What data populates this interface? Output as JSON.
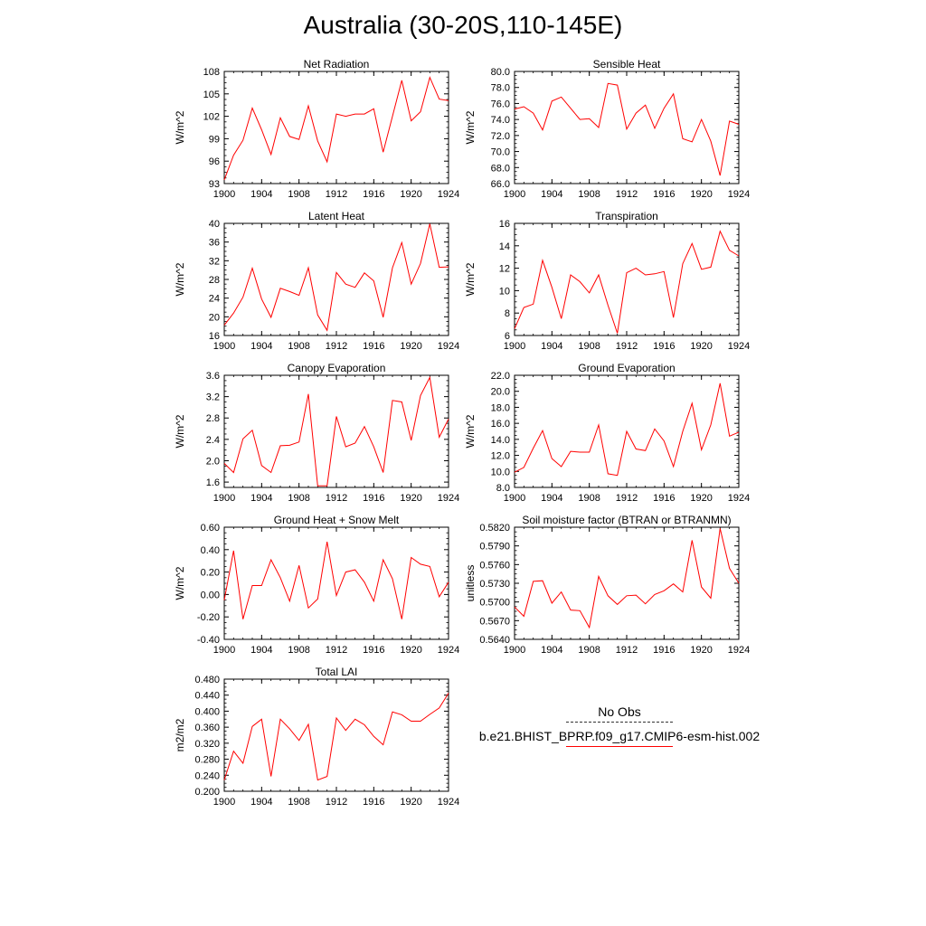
{
  "figure": {
    "title": "Australia (30-20S,110-145E)",
    "series_color": "#ff0000"
  },
  "legend": {
    "obs_label": "No Obs",
    "model_label": "b.e21.BHIST_BPRP.f09_g17.CMIP6-esm-hist.002"
  },
  "chart_data": [
    {
      "type": "line",
      "title": "Net Radiation",
      "ylabel": "W/m^2",
      "x": [
        1900,
        1901,
        1902,
        1903,
        1904,
        1905,
        1906,
        1907,
        1908,
        1909,
        1910,
        1911,
        1912,
        1913,
        1914,
        1915,
        1916,
        1917,
        1918,
        1919,
        1920,
        1921,
        1922,
        1923,
        1924
      ],
      "xlim": [
        1900,
        1924
      ],
      "xticks": [
        "1900",
        "1904",
        "1908",
        "1912",
        "1916",
        "1920",
        "1924"
      ],
      "ylim": [
        93,
        108
      ],
      "yticks": [
        "93",
        "96",
        "99",
        "102",
        "105",
        "108"
      ],
      "series": [
        {
          "values": [
            93.5,
            96.8,
            98.8,
            103.1,
            100.2,
            96.9,
            101.8,
            99.3,
            98.9,
            103.4,
            98.7,
            95.9,
            102.3,
            102.0,
            102.3,
            102.3,
            103.0,
            97.2,
            102.0,
            106.8,
            101.4,
            102.6,
            107.2,
            104.3,
            104.1
          ]
        }
      ]
    },
    {
      "type": "line",
      "title": "Sensible Heat",
      "ylabel": "W/m^2",
      "x": [
        1900,
        1901,
        1902,
        1903,
        1904,
        1905,
        1906,
        1907,
        1908,
        1909,
        1910,
        1911,
        1912,
        1913,
        1914,
        1915,
        1916,
        1917,
        1918,
        1919,
        1920,
        1921,
        1922,
        1923,
        1924
      ],
      "xlim": [
        1900,
        1924
      ],
      "xticks": [
        "1900",
        "1904",
        "1908",
        "1912",
        "1916",
        "1920",
        "1924"
      ],
      "ylim": [
        66.0,
        80.0
      ],
      "yticks": [
        "66.0",
        "68.0",
        "70.0",
        "72.0",
        "74.0",
        "76.0",
        "78.0",
        "80.0"
      ],
      "series": [
        {
          "values": [
            75.3,
            75.6,
            74.8,
            72.7,
            76.3,
            76.8,
            75.4,
            74.0,
            74.1,
            73.0,
            78.5,
            78.3,
            72.8,
            74.8,
            75.8,
            72.9,
            75.4,
            77.2,
            71.6,
            71.2,
            74.0,
            71.3,
            67.0,
            73.8,
            73.4
          ]
        }
      ]
    },
    {
      "type": "line",
      "title": "Latent Heat",
      "ylabel": "W/m^2",
      "x": [
        1900,
        1901,
        1902,
        1903,
        1904,
        1905,
        1906,
        1907,
        1908,
        1909,
        1910,
        1911,
        1912,
        1913,
        1914,
        1915,
        1916,
        1917,
        1918,
        1919,
        1920,
        1921,
        1922,
        1923,
        1924
      ],
      "xlim": [
        1900,
        1924
      ],
      "xticks": [
        "1900",
        "1904",
        "1908",
        "1912",
        "1916",
        "1920",
        "1924"
      ],
      "ylim": [
        16,
        40
      ],
      "yticks": [
        "16",
        "20",
        "24",
        "28",
        "32",
        "36",
        "40"
      ],
      "series": [
        {
          "values": [
            18.2,
            20.8,
            24.2,
            30.4,
            23.8,
            19.9,
            26.1,
            25.4,
            24.6,
            30.5,
            20.4,
            17.1,
            29.5,
            27.0,
            26.3,
            29.4,
            27.7,
            19.9,
            30.5,
            35.9,
            27.0,
            31.4,
            39.9,
            30.6,
            30.7
          ]
        }
      ]
    },
    {
      "type": "line",
      "title": "Transpiration",
      "ylabel": "W/m^2",
      "x": [
        1900,
        1901,
        1902,
        1903,
        1904,
        1905,
        1906,
        1907,
        1908,
        1909,
        1910,
        1911,
        1912,
        1913,
        1914,
        1915,
        1916,
        1917,
        1918,
        1919,
        1920,
        1921,
        1922,
        1923,
        1924
      ],
      "xlim": [
        1900,
        1924
      ],
      "xticks": [
        "1900",
        "1904",
        "1908",
        "1912",
        "1916",
        "1920",
        "1924"
      ],
      "ylim": [
        6,
        16
      ],
      "yticks": [
        "6",
        "8",
        "10",
        "12",
        "14",
        "16"
      ],
      "series": [
        {
          "values": [
            6.6,
            8.5,
            8.8,
            12.7,
            10.3,
            7.5,
            11.4,
            10.8,
            9.8,
            11.4,
            8.7,
            6.2,
            11.6,
            12.0,
            11.4,
            11.5,
            11.7,
            7.6,
            12.4,
            14.2,
            11.9,
            12.1,
            15.3,
            13.6,
            13.1
          ]
        }
      ]
    },
    {
      "type": "line",
      "title": "Canopy Evaporation",
      "ylabel": "W/m^2",
      "x": [
        1900,
        1901,
        1902,
        1903,
        1904,
        1905,
        1906,
        1907,
        1908,
        1909,
        1910,
        1911,
        1912,
        1913,
        1914,
        1915,
        1916,
        1917,
        1918,
        1919,
        1920,
        1921,
        1922,
        1923,
        1924
      ],
      "xlim": [
        1900,
        1924
      ],
      "xticks": [
        "1900",
        "1904",
        "1908",
        "1912",
        "1916",
        "1920",
        "1924"
      ],
      "ylim": [
        1.5,
        3.6
      ],
      "yticks": [
        "1.6",
        "2.0",
        "2.4",
        "2.8",
        "3.2",
        "3.6"
      ],
      "series": [
        {
          "values": [
            1.95,
            1.78,
            2.41,
            2.57,
            1.91,
            1.78,
            2.28,
            2.29,
            2.35,
            3.25,
            1.53,
            1.53,
            2.83,
            2.26,
            2.33,
            2.64,
            2.26,
            1.78,
            3.13,
            3.1,
            2.38,
            3.22,
            3.56,
            2.44,
            2.78
          ]
        }
      ]
    },
    {
      "type": "line",
      "title": "Ground Evaporation",
      "ylabel": "W/m^2",
      "x": [
        1900,
        1901,
        1902,
        1903,
        1904,
        1905,
        1906,
        1907,
        1908,
        1909,
        1910,
        1911,
        1912,
        1913,
        1914,
        1915,
        1916,
        1917,
        1918,
        1919,
        1920,
        1921,
        1922,
        1923,
        1924
      ],
      "xlim": [
        1900,
        1924
      ],
      "xticks": [
        "1900",
        "1904",
        "1908",
        "1912",
        "1916",
        "1920",
        "1924"
      ],
      "ylim": [
        8.0,
        22.0
      ],
      "yticks": [
        "8.0",
        "10.0",
        "12.0",
        "14.0",
        "16.0",
        "18.0",
        "20.0",
        "22.0"
      ],
      "series": [
        {
          "values": [
            9.9,
            10.5,
            12.9,
            15.1,
            11.6,
            10.6,
            12.5,
            12.4,
            12.4,
            15.8,
            9.7,
            9.5,
            15.0,
            12.8,
            12.6,
            15.3,
            13.8,
            10.6,
            15.0,
            18.5,
            12.7,
            15.8,
            21.0,
            14.4,
            14.9
          ]
        }
      ]
    },
    {
      "type": "line",
      "title": "Ground Heat + Snow Melt",
      "ylabel": "W/m^2",
      "x": [
        1900,
        1901,
        1902,
        1903,
        1904,
        1905,
        1906,
        1907,
        1908,
        1909,
        1910,
        1911,
        1912,
        1913,
        1914,
        1915,
        1916,
        1917,
        1918,
        1919,
        1920,
        1921,
        1922,
        1923,
        1924
      ],
      "xlim": [
        1900,
        1924
      ],
      "xticks": [
        "1900",
        "1904",
        "1908",
        "1912",
        "1916",
        "1920",
        "1924"
      ],
      "ylim": [
        -0.4,
        0.6
      ],
      "yticks": [
        "-0.40",
        "-0.20",
        "0.00",
        "0.20",
        "0.40",
        "0.60"
      ],
      "series": [
        {
          "values": [
            -0.05,
            0.39,
            -0.22,
            0.08,
            0.08,
            0.31,
            0.15,
            -0.06,
            0.26,
            -0.12,
            -0.04,
            0.47,
            -0.01,
            0.2,
            0.22,
            0.11,
            -0.06,
            0.31,
            0.14,
            -0.22,
            0.33,
            0.27,
            0.25,
            -0.02,
            0.11
          ]
        }
      ]
    },
    {
      "type": "line",
      "title": "Soil moisture factor (BTRAN or BTRANMN)",
      "ylabel": "unitless",
      "x": [
        1900,
        1901,
        1902,
        1903,
        1904,
        1905,
        1906,
        1907,
        1908,
        1909,
        1910,
        1911,
        1912,
        1913,
        1914,
        1915,
        1916,
        1917,
        1918,
        1919,
        1920,
        1921,
        1922,
        1923,
        1924
      ],
      "xlim": [
        1900,
        1924
      ],
      "xticks": [
        "1900",
        "1904",
        "1908",
        "1912",
        "1916",
        "1920",
        "1924"
      ],
      "ylim": [
        0.564,
        0.582
      ],
      "yticks": [
        "0.5640",
        "0.5670",
        "0.5700",
        "0.5730",
        "0.5760",
        "0.5790",
        "0.5820"
      ],
      "series": [
        {
          "values": [
            0.5692,
            0.5677,
            0.5733,
            0.5734,
            0.5698,
            0.5716,
            0.5687,
            0.5686,
            0.5659,
            0.5741,
            0.571,
            0.5696,
            0.571,
            0.5711,
            0.5697,
            0.5712,
            0.5718,
            0.5729,
            0.5716,
            0.5799,
            0.5724,
            0.5706,
            0.5818,
            0.5754,
            0.573
          ]
        }
      ]
    },
    {
      "type": "line",
      "title": "Total LAI",
      "ylabel": "m2/m2",
      "x": [
        1900,
        1901,
        1902,
        1903,
        1904,
        1905,
        1906,
        1907,
        1908,
        1909,
        1910,
        1911,
        1912,
        1913,
        1914,
        1915,
        1916,
        1917,
        1918,
        1919,
        1920,
        1921,
        1922,
        1923,
        1924
      ],
      "xlim": [
        1900,
        1924
      ],
      "xticks": [
        "1900",
        "1904",
        "1908",
        "1912",
        "1916",
        "1920",
        "1924"
      ],
      "ylim": [
        0.2,
        0.48
      ],
      "yticks": [
        "0.200",
        "0.240",
        "0.280",
        "0.320",
        "0.360",
        "0.400",
        "0.440",
        "0.480"
      ],
      "series": [
        {
          "values": [
            0.228,
            0.3,
            0.27,
            0.362,
            0.38,
            0.237,
            0.38,
            0.356,
            0.327,
            0.367,
            0.228,
            0.237,
            0.383,
            0.352,
            0.38,
            0.366,
            0.337,
            0.316,
            0.398,
            0.391,
            0.375,
            0.375,
            0.392,
            0.408,
            0.445
          ]
        }
      ]
    }
  ]
}
